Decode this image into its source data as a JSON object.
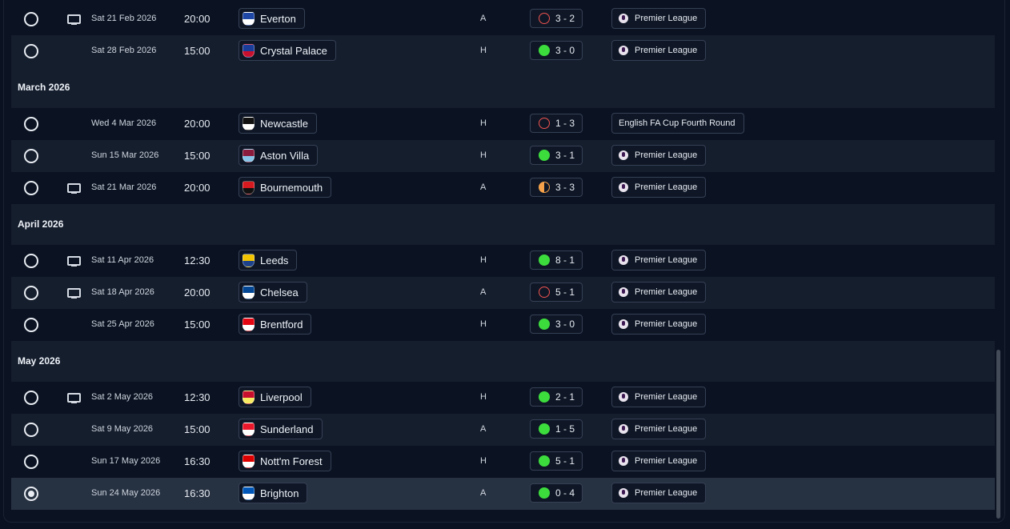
{
  "months": [
    {
      "label": "",
      "matches": [
        {
          "date": "Sat 21 Feb 2026",
          "time": "20:00",
          "team": "Everton",
          "crest": [
            "#1f48a6",
            "#ffffff"
          ],
          "tv": true,
          "venue": "A",
          "result": "loss",
          "score": "3 - 2",
          "competition": "Premier League",
          "pl": true
        },
        {
          "date": "Sat 28 Feb 2026",
          "time": "15:00",
          "team": "Crystal Palace",
          "crest": [
            "#1b3d9a",
            "#c8102e"
          ],
          "tv": false,
          "venue": "H",
          "result": "win",
          "score": "3 - 0",
          "competition": "Premier League",
          "pl": true
        }
      ]
    },
    {
      "label": "March 2026",
      "matches": [
        {
          "date": "Wed 4 Mar 2026",
          "time": "20:00",
          "team": "Newcastle",
          "crest": [
            "#111111",
            "#ffffff"
          ],
          "tv": false,
          "venue": "H",
          "result": "loss",
          "score": "1 - 3",
          "competition": "English FA Cup Fourth Round",
          "pl": false
        },
        {
          "date": "Sun 15 Mar 2026",
          "time": "15:00",
          "team": "Aston Villa",
          "crest": [
            "#8a1d3e",
            "#87c4e8"
          ],
          "tv": false,
          "venue": "H",
          "result": "win",
          "score": "3 - 1",
          "competition": "Premier League",
          "pl": true
        },
        {
          "date": "Sat 21 Mar 2026",
          "time": "20:00",
          "team": "Bournemouth",
          "crest": [
            "#d71920",
            "#111111"
          ],
          "tv": true,
          "venue": "A",
          "result": "draw",
          "score": "3 - 3",
          "competition": "Premier League",
          "pl": true
        }
      ]
    },
    {
      "label": "April 2026",
      "matches": [
        {
          "date": "Sat 11 Apr 2026",
          "time": "12:30",
          "team": "Leeds",
          "crest": [
            "#f2c500",
            "#1d428a"
          ],
          "tv": true,
          "venue": "H",
          "result": "win",
          "score": "8 - 1",
          "competition": "Premier League",
          "pl": true
        },
        {
          "date": "Sat 18 Apr 2026",
          "time": "20:00",
          "team": "Chelsea",
          "crest": [
            "#034694",
            "#ffffff"
          ],
          "tv": true,
          "venue": "A",
          "result": "loss",
          "score": "5 - 1",
          "competition": "Premier League",
          "pl": true
        },
        {
          "date": "Sat 25 Apr 2026",
          "time": "15:00",
          "team": "Brentford",
          "crest": [
            "#e30613",
            "#ffffff"
          ],
          "tv": false,
          "venue": "H",
          "result": "win",
          "score": "3 - 0",
          "competition": "Premier League",
          "pl": true
        }
      ]
    },
    {
      "label": "May 2026",
      "matches": [
        {
          "date": "Sat 2 May 2026",
          "time": "12:30",
          "team": "Liverpool",
          "crest": [
            "#c8102e",
            "#f6eb61"
          ],
          "tv": true,
          "venue": "H",
          "result": "win",
          "score": "2 - 1",
          "competition": "Premier League",
          "pl": true
        },
        {
          "date": "Sat 9 May 2026",
          "time": "15:00",
          "team": "Sunderland",
          "crest": [
            "#eb172b",
            "#ffffff"
          ],
          "tv": false,
          "venue": "A",
          "result": "win",
          "score": "1 - 5",
          "competition": "Premier League",
          "pl": true
        },
        {
          "date": "Sun 17 May 2026",
          "time": "16:30",
          "team": "Nott'm Forest",
          "crest": [
            "#dd0000",
            "#ffffff"
          ],
          "tv": false,
          "venue": "H",
          "result": "win",
          "score": "5 - 1",
          "competition": "Premier League",
          "pl": true
        },
        {
          "date": "Sun 24 May 2026",
          "time": "16:30",
          "team": "Brighton",
          "crest": [
            "#0057b8",
            "#ffffff"
          ],
          "tv": false,
          "venue": "A",
          "result": "win",
          "score": "0 - 4",
          "competition": "Premier League",
          "pl": true,
          "selected": true
        }
      ]
    }
  ],
  "colors": {
    "win": "#3ddc3d",
    "loss": "#ef5350",
    "draw": "#f5a24a",
    "background": "#0b1322"
  }
}
